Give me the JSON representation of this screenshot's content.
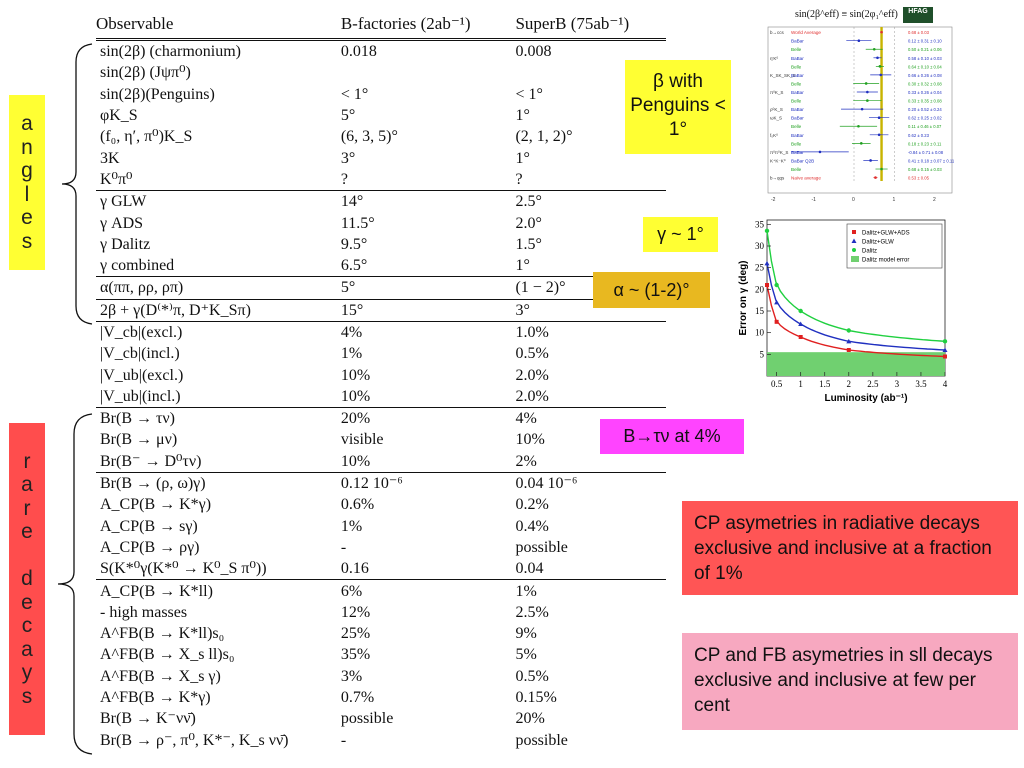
{
  "side_labels": {
    "angles": [
      "a",
      "n",
      "g",
      "l",
      "e",
      "s"
    ],
    "rare_decays": [
      "r",
      "a",
      "r",
      "e",
      "",
      "d",
      "e",
      "c",
      "a",
      "y",
      "s"
    ]
  },
  "table": {
    "headers": [
      "Observable",
      "B-factories (2ab⁻¹)",
      "SuperB (75ab⁻¹)"
    ],
    "rows": [
      {
        "obs": "sin(2β) (charmonium)",
        "bf": "0.018",
        "sb": "0.008"
      },
      {
        "obs": "sin(2β) (Jψπ⁰)",
        "bf": "",
        "sb": ""
      },
      {
        "obs": "sin(2β)(Penguins)",
        "bf": "< 1°",
        "sb": "< 1°"
      },
      {
        "obs": "φK_S",
        "bf": "5°",
        "sb": "1°"
      },
      {
        "obs": "(f₀, η′, π⁰)K_S",
        "bf": "(6, 3, 5)°",
        "sb": "(2, 1, 2)°"
      },
      {
        "obs": "3K",
        "bf": "3°",
        "sb": "1°"
      },
      {
        "obs": "K⁰π⁰",
        "bf": "?",
        "sb": "?"
      },
      {
        "obs": "γ GLW",
        "bf": "14°",
        "sb": "2.5°"
      },
      {
        "obs": "γ ADS",
        "bf": "11.5°",
        "sb": "2.0°"
      },
      {
        "obs": "γ Dalitz",
        "bf": "9.5°",
        "sb": "1.5°"
      },
      {
        "obs": "γ combined",
        "bf": "6.5°",
        "sb": "1°"
      },
      {
        "obs": "α(ππ, ρρ, ρπ)",
        "bf": "5°",
        "sb": "(1 − 2)°"
      },
      {
        "obs": "2β + γ(D⁽*⁾π, D⁺K_Sπ)",
        "bf": "15°",
        "sb": "3°"
      },
      {
        "obs": "|V_cb|(excl.)",
        "bf": "4%",
        "sb": "1.0%"
      },
      {
        "obs": "|V_cb|(incl.)",
        "bf": "1%",
        "sb": "0.5%"
      },
      {
        "obs": "|V_ub|(excl.)",
        "bf": "10%",
        "sb": "2.0%"
      },
      {
        "obs": "|V_ub|(incl.)",
        "bf": "10%",
        "sb": "2.0%"
      },
      {
        "obs": "Br(B → τν)",
        "bf": "20%",
        "sb": "4%"
      },
      {
        "obs": "Br(B → μν)",
        "bf": "visible",
        "sb": "10%"
      },
      {
        "obs": "Br(B⁻ → D⁰τν)",
        "bf": "10%",
        "sb": "2%"
      },
      {
        "obs": "Br(B → (ρ, ω)γ)",
        "bf": "0.12 10⁻⁶",
        "sb": "0.04 10⁻⁶"
      },
      {
        "obs": "A_CP(B → K*γ)",
        "bf": "0.6%",
        "sb": "0.2%"
      },
      {
        "obs": "A_CP(B → sγ)",
        "bf": "1%",
        "sb": "0.4%"
      },
      {
        "obs": "A_CP(B → ργ)",
        "bf": "-",
        "sb": "possible"
      },
      {
        "obs": "S(K*⁰γ(K*⁰ → K⁰_S π⁰))",
        "bf": "0.16",
        "sb": "0.04"
      },
      {
        "obs": "A_CP(B → K*ll)",
        "bf": "6%",
        "sb": "1%"
      },
      {
        "obs": "- high masses",
        "bf": "12%",
        "sb": "2.5%"
      },
      {
        "obs": "A^FB(B → K*ll)s₀",
        "bf": "25%",
        "sb": "9%"
      },
      {
        "obs": "A^FB(B → X_s ll)s₀",
        "bf": "35%",
        "sb": "5%"
      },
      {
        "obs": "A^FB(B → X_s γ)",
        "bf": "3%",
        "sb": "0.5%"
      },
      {
        "obs": "A^FB(B → K*γ)",
        "bf": "0.7%",
        "sb": "0.15%"
      },
      {
        "obs": "Br(B → K⁻νν̄)",
        "bf": "possible",
        "sb": "20%"
      },
      {
        "obs": "Br(B → ρ⁻, π⁰, K*⁻, K_s νν̄)",
        "bf": "-",
        "sb": "possible"
      }
    ]
  },
  "callouts": {
    "beta": "β with Penguins < 1°",
    "gamma": "γ ~ 1°",
    "alpha": "α ~ (1-2)°",
    "btau": "B→τν at 4%",
    "cp_radiative": "CP asymetries in radiative decays exclusive and inclusive at a fraction of 1%",
    "cp_fb": "CP and FB asymetries in sll decays exclusive and inclusive at few per cent"
  },
  "hfag": {
    "title": "sin(2β^eff) ≡ sin(2φ₁^eff)",
    "logo": "HFAG",
    "rows": [
      {
        "label": "b→ccs",
        "exp": "World Average",
        "color": "#e03030",
        "value": "0.68 ± 0.03"
      },
      {
        "label": "",
        "exp": "BaBar",
        "color": "#2030c0",
        "value": "0.12 ± 0.31 ± 0.10"
      },
      {
        "label": "",
        "exp": "Belle",
        "color": "#20a020",
        "value": "0.50 ± 0.21 ± 0.06"
      },
      {
        "label": "η′K⁰",
        "exp": "BaBar",
        "color": "#2030c0",
        "value": "0.58 ± 0.10 ± 0.03"
      },
      {
        "label": "",
        "exp": "Belle",
        "color": "#20a020",
        "value": "0.64 ± 0.10 ± 0.04"
      },
      {
        "label": "K_SK_SK_S",
        "exp": "BaBar",
        "color": "#2030c0",
        "value": "0.66 ± 0.26 ± 0.08"
      },
      {
        "label": "",
        "exp": "Belle",
        "color": "#20a020",
        "value": "0.30 ± 0.32 ± 0.08"
      },
      {
        "label": "π⁰K_S",
        "exp": "BaBar",
        "color": "#2030c0",
        "value": "0.33 ± 0.26 ± 0.04"
      },
      {
        "label": "",
        "exp": "Belle",
        "color": "#20a020",
        "value": "0.33 ± 0.35 ± 0.08"
      },
      {
        "label": "ρ⁰K_S",
        "exp": "BaBar",
        "color": "#2030c0",
        "value": "0.20 ± 0.52 ± 0.24"
      },
      {
        "label": "ωK_S",
        "exp": "BaBar",
        "color": "#2030c0",
        "value": "0.62 ± 0.25 ± 0.02"
      },
      {
        "label": "",
        "exp": "Belle",
        "color": "#20a020",
        "value": "0.11 ± 0.46 ± 0.07"
      },
      {
        "label": "f₀K⁰",
        "exp": "BaBar",
        "color": "#2030c0",
        "value": "0.62 ± 0.23"
      },
      {
        "label": "",
        "exp": "Belle",
        "color": "#20a020",
        "value": "0.18 ± 0.23 ± 0.11"
      },
      {
        "label": "π⁰π⁰K_S",
        "exp": "BaBar",
        "color": "#2030c0",
        "value": "-0.84 ± 0.71 ± 0.08"
      },
      {
        "label": "K⁺K⁻K⁰",
        "exp": "BaBar Q2B",
        "color": "#2030c0",
        "value": "0.41 ± 0.18 ± 0.07 ± 0.11"
      },
      {
        "label": "",
        "exp": "Belle",
        "color": "#20a020",
        "value": "0.68 ± 0.15 ± 0.03"
      },
      {
        "label": "b→qqs",
        "exp": "Naïve average",
        "color": "#e03030",
        "value": "0.53 ± 0.05"
      }
    ],
    "axis_ticks": [
      "-2",
      "-1",
      "0",
      "1",
      "2"
    ]
  },
  "chart_data": {
    "type": "line",
    "title": "",
    "xlabel": "Luminosity (ab⁻¹)",
    "ylabel": "Error on γ (deg)",
    "xlim": [
      0.3,
      4
    ],
    "ylim": [
      0,
      36
    ],
    "x_ticks": [
      "0.5",
      "1",
      "1.5",
      "2",
      "2.5",
      "3",
      "3.5",
      "4"
    ],
    "y_ticks": [
      "5",
      "10",
      "15",
      "20",
      "25",
      "30",
      "35"
    ],
    "legend_position": "top-right",
    "series": [
      {
        "name": "Dalitz+GLW+ADS",
        "color": "#e02020",
        "marker": "square",
        "x": [
          0.3,
          0.5,
          1,
          2,
          4
        ],
        "y": [
          21,
          12.5,
          9,
          6,
          4.5
        ]
      },
      {
        "name": "Dalitz+GLW",
        "color": "#2030c0",
        "marker": "triangle",
        "x": [
          0.3,
          0.5,
          1,
          2,
          4
        ],
        "y": [
          26,
          17,
          12,
          8,
          6
        ]
      },
      {
        "name": "Dalitz",
        "color": "#20d040",
        "marker": "circle",
        "x": [
          0.3,
          0.5,
          1,
          2,
          4
        ],
        "y": [
          33.5,
          21,
          15,
          10.5,
          8
        ]
      }
    ],
    "band": {
      "name": "Dalitz model error",
      "color": "#70d070",
      "y": [
        0,
        5.5
      ]
    }
  }
}
